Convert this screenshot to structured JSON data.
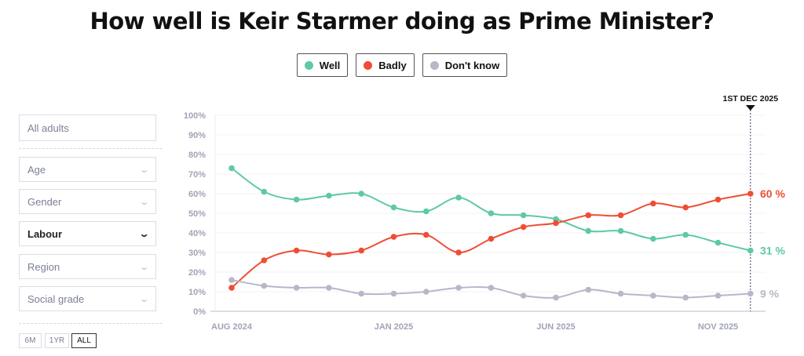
{
  "title": "How well is Keir Starmer doing as Prime Minister?",
  "legend": [
    {
      "label": "Well",
      "color": "#5ec9a3"
    },
    {
      "label": "Badly",
      "color": "#ee4e34"
    },
    {
      "label": "Don't know",
      "color": "#b5b8c9"
    }
  ],
  "filters": {
    "audience": "All adults",
    "dropdowns": [
      {
        "label": "Age",
        "active": false
      },
      {
        "label": "Gender",
        "active": false
      },
      {
        "label": "Labour",
        "active": true
      },
      {
        "label": "Region",
        "active": false
      },
      {
        "label": "Social grade",
        "active": false
      }
    ]
  },
  "ranges": [
    {
      "label": "6M",
      "active": false
    },
    {
      "label": "1YR",
      "active": false
    },
    {
      "label": "ALL",
      "active": true
    }
  ],
  "chart_data": {
    "type": "line",
    "title": "How well is Keir Starmer doing as Prime Minister?",
    "ylim": [
      0,
      100
    ],
    "yticks": [
      "0%",
      "10%",
      "20%",
      "30%",
      "40%",
      "50%",
      "60%",
      "70%",
      "80%",
      "90%",
      "100%"
    ],
    "xtick_labels": [
      {
        "index": 0,
        "label": "AUG 2024"
      },
      {
        "index": 5,
        "label": "JAN 2025"
      },
      {
        "index": 10,
        "label": "JUN 2025"
      },
      {
        "index": 15,
        "label": "NOV 2025"
      }
    ],
    "marker_label": "1ST DEC 2025",
    "series": [
      {
        "name": "Well",
        "color": "#5ec9a3",
        "values": [
          73,
          61,
          57,
          59,
          60,
          53,
          51,
          58,
          50,
          49,
          47,
          41,
          41,
          37,
          39,
          35,
          31
        ],
        "end_label": "31 %"
      },
      {
        "name": "Badly",
        "color": "#ee4e34",
        "values": [
          12,
          26,
          31,
          29,
          31,
          38,
          39,
          30,
          37,
          43,
          45,
          49,
          49,
          55,
          53,
          57,
          60
        ],
        "end_label": "60 %"
      },
      {
        "name": "Don't know",
        "color": "#b5b8c9",
        "values": [
          16,
          13,
          12,
          12,
          9,
          9,
          10,
          12,
          12,
          8,
          7,
          11,
          9,
          8,
          7,
          8,
          9
        ],
        "end_label": "9 %"
      }
    ]
  }
}
